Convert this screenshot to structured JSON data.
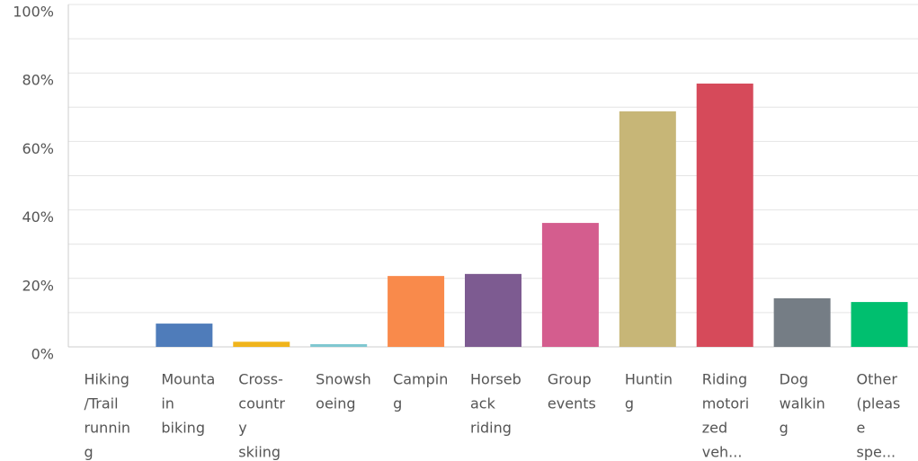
{
  "chart_data": {
    "type": "bar",
    "categories": [
      [
        "Hiking",
        "/Trail",
        "runnin",
        "g"
      ],
      [
        "Mounta",
        "in",
        "biking"
      ],
      [
        "Cross-",
        "countr",
        "y",
        "skiing"
      ],
      [
        "Snowsh",
        "oeing"
      ],
      [
        "Campin",
        "g"
      ],
      [
        "Horseb",
        "ack",
        "riding"
      ],
      [
        "Group",
        "events"
      ],
      [
        "Huntin",
        "g"
      ],
      [
        "Riding",
        "motori",
        "zed",
        "veh..."
      ],
      [
        "Dog",
        "walkin",
        "g"
      ],
      [
        "Other",
        "(pleas",
        "e",
        "spe..."
      ]
    ],
    "values": [
      0,
      6.8,
      1.5,
      0.8,
      20.7,
      21.3,
      36.2,
      68.8,
      76.9,
      14.2,
      13.1
    ],
    "colors": [
      "#2fb8c6",
      "#4f7cba",
      "#f0b41c",
      "#7fc7d0",
      "#f98a4b",
      "#7d5b91",
      "#d45d8e",
      "#c7b677",
      "#d64a5a",
      "#757d85",
      "#00bf6f"
    ],
    "ylim": [
      0,
      100
    ],
    "yticks": [
      {
        "value": 0,
        "label": "0%"
      },
      {
        "value": 20,
        "label": "20%"
      },
      {
        "value": 40,
        "label": "40%"
      },
      {
        "value": 60,
        "label": "60%"
      },
      {
        "value": 80,
        "label": "80%"
      },
      {
        "value": 100,
        "label": "100%"
      }
    ],
    "minor_yticks": [
      10,
      30,
      50,
      70,
      90
    ],
    "grid": true
  }
}
